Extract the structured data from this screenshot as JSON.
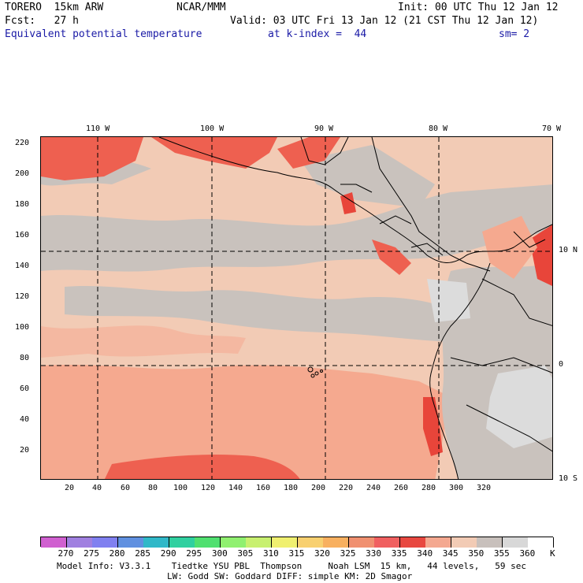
{
  "header": {
    "line1_left": "TORERO  15km ARW",
    "line1_mid": "NCAR/MMM",
    "line1_right": "Init: 00 UTC Thu 12 Jan 12",
    "line2_left": "Fcst:   27 h",
    "line2_right": "Valid: 03 UTC Fri 13 Jan 12 (21 CST Thu 12 Jan 12)",
    "field_name": "Equivalent potential temperature",
    "level": "at k-index =  44",
    "smoothing": "sm= 2"
  },
  "map": {
    "lon_labels": [
      "110 W",
      "100 W",
      "90 W",
      "80 W",
      "70 W"
    ],
    "lat_labels": [
      "10 N",
      "0",
      "10 S"
    ],
    "y_ticks": [
      "20",
      "40",
      "60",
      "80",
      "100",
      "120",
      "140",
      "160",
      "180",
      "200",
      "220"
    ],
    "x_ticks": [
      "20",
      "40",
      "60",
      "80",
      "100",
      "120",
      "140",
      "160",
      "180",
      "200",
      "220",
      "240",
      "260",
      "280",
      "300",
      "320"
    ],
    "colors": {
      "background": "#f2cbb5",
      "warm_band": "#f5a98f",
      "grey": "#c9c2bd",
      "light_grey": "#dcdcdc",
      "hot": "#ee6050",
      "very_hot": "#e8453a"
    }
  },
  "colorbar": {
    "levels": [
      "270",
      "275",
      "280",
      "285",
      "290",
      "295",
      "300",
      "305",
      "310",
      "315",
      "320",
      "325",
      "330",
      "335",
      "340",
      "345",
      "350",
      "355",
      "360"
    ],
    "unit": "K",
    "colors": [
      "#d060d0",
      "#a080e0",
      "#8080f0",
      "#6090e0",
      "#30b8c8",
      "#30d0a0",
      "#50e070",
      "#90f070",
      "#c8f070",
      "#f0f070",
      "#f8d070",
      "#f8b060",
      "#f09070",
      "#f06060",
      "#e84840",
      "#f4a890",
      "#f2cbb5",
      "#c8c0bc",
      "#d8d8d8",
      "#ffffff"
    ]
  },
  "footer": {
    "line1": "Model Info: V3.3.1    Tiedtke YSU PBL  Thompson     Noah LSM  15 km,   44 levels,   59 sec",
    "line2": "LW: Godd SW: Goddard DIFF: simple KM: 2D Smagor"
  }
}
